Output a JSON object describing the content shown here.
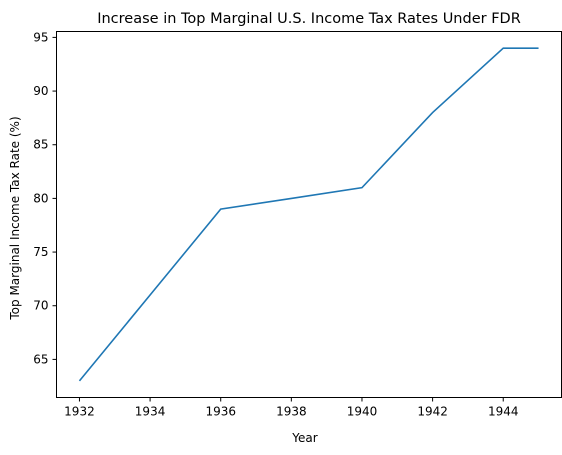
{
  "chart_data": {
    "type": "line",
    "title": "Increase in Top Marginal U.S. Income Tax Rates Under FDR",
    "xlabel": "Year",
    "ylabel": "Top Marginal Income Tax Rate (%)",
    "x": [
      1932,
      1934,
      1936,
      1938,
      1940,
      1942,
      1944,
      1945
    ],
    "series": [
      {
        "values": [
          63,
          71,
          79,
          80,
          81,
          88,
          94,
          94
        ]
      }
    ],
    "xlim": [
      1931.35,
      1945.65
    ],
    "ylim": [
      61.45,
      95.55
    ],
    "xticks": [
      "1932",
      "1934",
      "1936",
      "1938",
      "1940",
      "1942",
      "1944"
    ],
    "yticks": [
      "65",
      "70",
      "75",
      "80",
      "85",
      "90",
      "95"
    ],
    "grid": false,
    "colors": {
      "line": "#1f77b4"
    }
  }
}
